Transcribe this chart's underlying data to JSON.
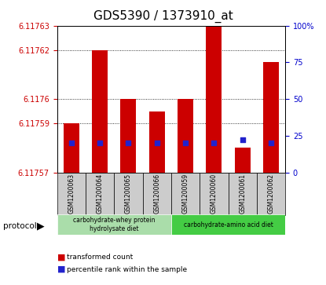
{
  "title": "GDS5390 / 1373910_at",
  "samples": [
    "GSM1200063",
    "GSM1200064",
    "GSM1200065",
    "GSM1200066",
    "GSM1200059",
    "GSM1200060",
    "GSM1200061",
    "GSM1200062"
  ],
  "transformed_count": [
    6.11759,
    6.11762,
    6.1176,
    6.117595,
    6.1176,
    6.11763,
    6.11758,
    6.117615
  ],
  "percentile_rank": [
    20,
    20,
    20,
    20,
    20,
    20,
    22,
    20
  ],
  "y_min": 6.11757,
  "y_max": 6.11763,
  "y_ticks_left": [
    6.11757,
    6.11759,
    6.1176,
    6.11762,
    6.11763
  ],
  "y_ticks_right": [
    0,
    25,
    50,
    75,
    100
  ],
  "bar_color": "#cc0000",
  "percentile_color": "#2222cc",
  "group1_label": "carbohydrate-whey protein\nhydrolysate diet",
  "group2_label": "carbohydrate-amino acid diet",
  "group1_color": "#aaddaa",
  "group2_color": "#44cc44",
  "group1_samples": 4,
  "group2_samples": 4,
  "legend_bar": "transformed count",
  "legend_pct": "percentile rank within the sample",
  "protocol_label": "protocol",
  "ylabel_left_color": "#cc0000",
  "ylabel_right_color": "#0000cc",
  "tick_label_fontsize": 7,
  "title_fontsize": 11
}
